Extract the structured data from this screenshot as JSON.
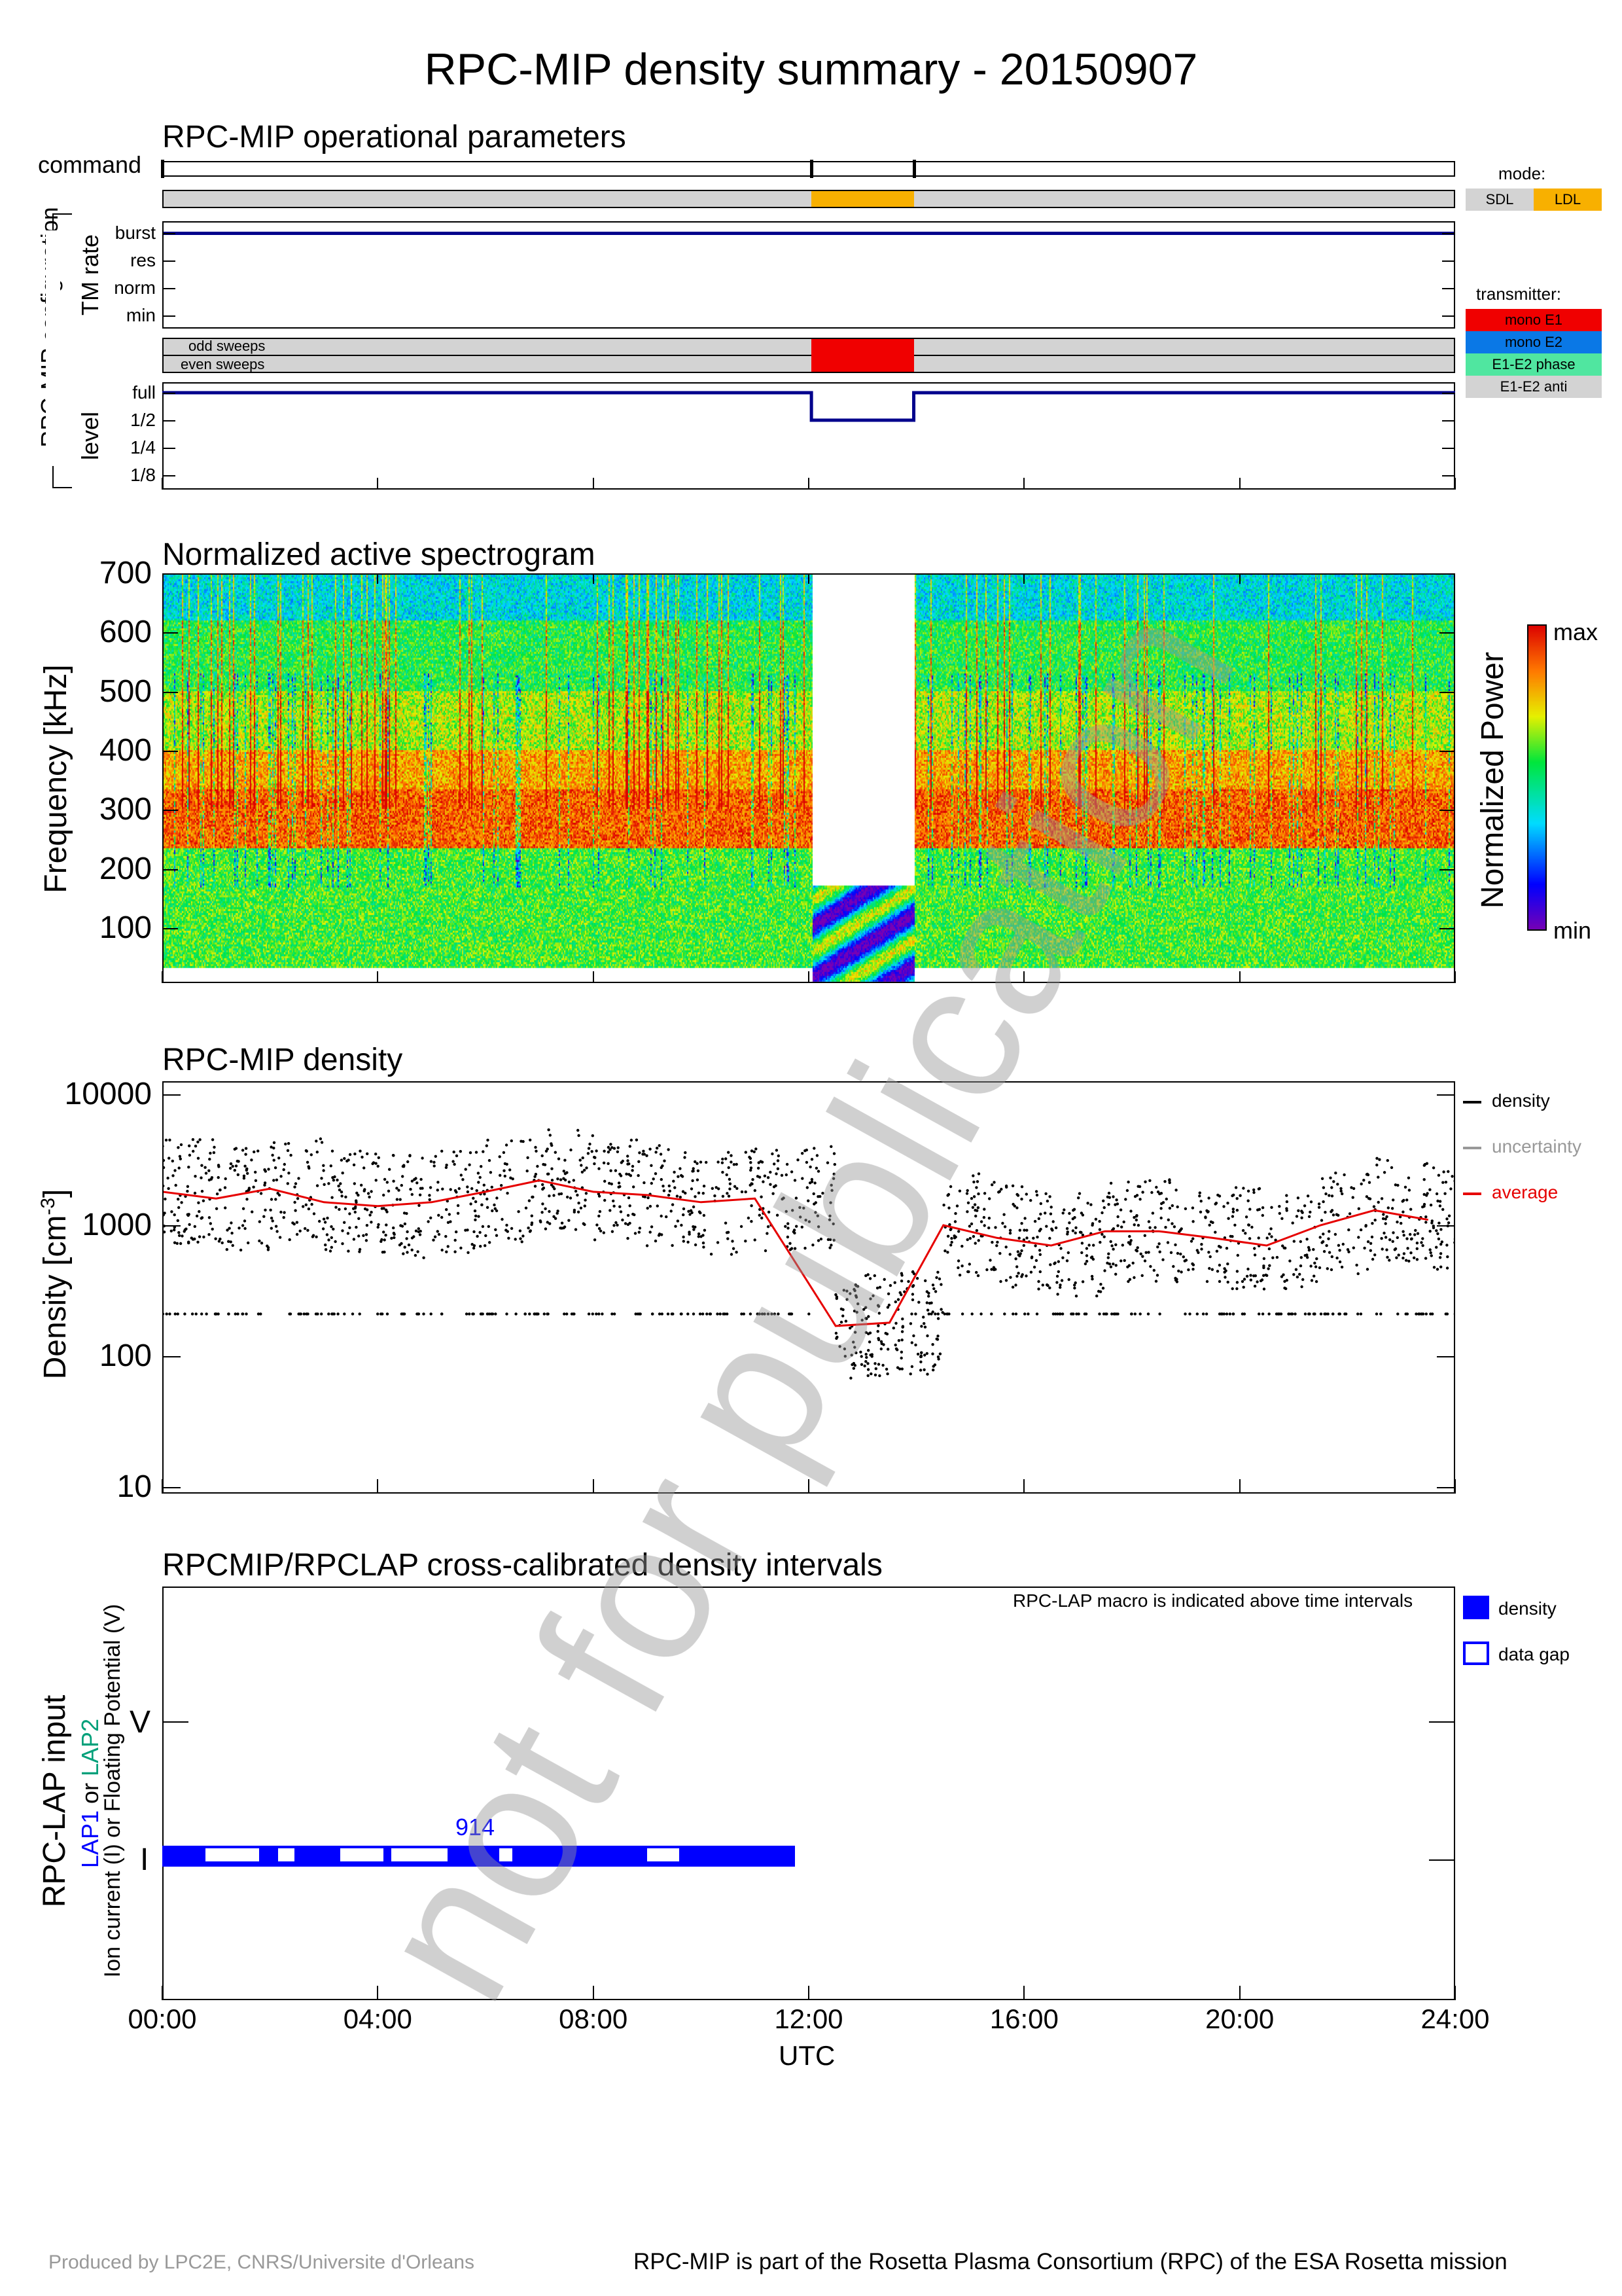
{
  "page_title": "RPC-MIP density summary - 20150907",
  "watermark": "not for publication",
  "footer_left": "Produced by LPC2E, CNRS/Universite d'Orleans",
  "footer_right": "RPC-MIP is part of the Rosetta Plasma Consortium (RPC) of the ESA Rosetta mission",
  "ops": {
    "title": "RPC-MIP operational parameters",
    "command_label": "command",
    "config_label": "RPC-MIP configuration",
    "tm_rate_label": "TM rate",
    "tm_rate_ticks": [
      "burst",
      "res",
      "norm",
      "min"
    ],
    "level_label": "level",
    "level_ticks": [
      "full",
      "1/2",
      "1/4",
      "1/8"
    ],
    "odd_sweeps": "odd sweeps",
    "even_sweeps": "even sweeps",
    "mode_title": "mode:",
    "mode_items": [
      {
        "label": "SDL",
        "color": "#d3d3d3"
      },
      {
        "label": "LDL",
        "color": "#f8b000"
      }
    ],
    "transmitter_title": "transmitter:",
    "transmitter_items": [
      {
        "label": "mono E1",
        "color": "#f00000"
      },
      {
        "label": "mono E2",
        "color": "#0a78e6"
      },
      {
        "label": "E1-E2 phase",
        "color": "#50e6a0"
      },
      {
        "label": "E1-E2 anti",
        "color": "#d3d3d3"
      }
    ],
    "command_times_h": [
      0,
      12.05,
      13.95
    ],
    "ldl_interval_h": [
      12.05,
      13.95
    ],
    "mono_e1_interval_h": [
      12.05,
      13.95
    ],
    "tm_rate_level": "burst",
    "level_segments": [
      {
        "start": 0,
        "end": 12.05,
        "level": "full"
      },
      {
        "start": 12.05,
        "end": 13.95,
        "level": "1/2"
      },
      {
        "start": 13.95,
        "end": 24,
        "level": "full"
      }
    ]
  },
  "spectrogram": {
    "title": "Normalized active spectrogram",
    "ylabel": "Frequency [kHz]",
    "yticks": [
      "700",
      "600",
      "500",
      "400",
      "300",
      "200",
      "100"
    ],
    "ylim": [
      7,
      700
    ],
    "colorbar_label": "Normalized Power",
    "colorbar_max": "max",
    "colorbar_min": "min",
    "gap_interval_h": [
      12.05,
      13.95
    ],
    "gap_fmax_khz": 175
  },
  "density": {
    "title": "RPC-MIP density",
    "ylabel": "Density [cm",
    "ylabel_sup": "-3",
    "ylabel_end": "]",
    "yticks": [
      "10000",
      "1000",
      "100",
      "10"
    ],
    "legend": [
      {
        "label": "density",
        "color": "#000000"
      },
      {
        "label": "uncertainty",
        "color": "#999999"
      },
      {
        "label": "average",
        "color": "#e60000"
      }
    ]
  },
  "lap": {
    "title": "RPCMIP/RPCLAP cross-calibrated density intervals",
    "note": "RPC-LAP macro is indicated above time intervals",
    "macro_label": "914",
    "ylabel_main": "RPC-LAP input",
    "ylabel_lap1": "LAP1",
    "ylabel_or": " or ",
    "ylabel_lap2": "LAP2",
    "ylabel_sub": "Ion current (I) or Floating Potential (V)",
    "tick_v": "V",
    "tick_i": "I",
    "legend_density": "density",
    "legend_gap": "data gap",
    "density_color": "#0000ff",
    "density_interval_h": [
      0,
      11.75
    ],
    "gaps_h": [
      [
        0.8,
        1.8
      ],
      [
        2.15,
        2.45
      ],
      [
        3.3,
        4.1
      ],
      [
        4.25,
        5.3
      ],
      [
        6.25,
        6.5
      ],
      [
        9.0,
        9.6
      ]
    ]
  },
  "xaxis": {
    "ticks": [
      "00:00",
      "04:00",
      "08:00",
      "12:00",
      "16:00",
      "20:00",
      "24:00"
    ],
    "label": "UTC"
  },
  "chart_data": [
    {
      "type": "line",
      "title": "RPC-MIP operational parameters",
      "x": [
        0,
        12.05,
        12.05,
        13.95,
        13.95,
        24
      ],
      "series": [
        {
          "name": "level",
          "values": [
            "full",
            "full",
            "1/2",
            "1/2",
            "full",
            "full"
          ]
        }
      ],
      "xlim": [
        0,
        24
      ]
    },
    {
      "type": "heatmap",
      "title": "Normalized active spectrogram",
      "xlabel": "UTC",
      "ylabel": "Frequency [kHz]",
      "xlim": [
        0,
        24
      ],
      "ylim": [
        7,
        700
      ]
    },
    {
      "type": "scatter",
      "title": "RPC-MIP density",
      "xlabel": "UTC",
      "ylabel": "Density [cm-3]",
      "xlim": [
        0,
        24
      ],
      "ylim": [
        10,
        10000
      ],
      "yscale": "log",
      "series": [
        {
          "name": "average",
          "x": [
            0,
            1,
            2,
            3,
            4,
            5,
            6,
            7,
            8,
            9,
            10,
            11,
            12.5,
            13.5,
            14.5,
            15.5,
            16.5,
            17.5,
            18.5,
            19.5,
            20.5,
            21.5,
            22.5,
            23.5
          ],
          "values": [
            1800,
            1600,
            1900,
            1500,
            1400,
            1500,
            1800,
            2200,
            1800,
            1700,
            1500,
            1600,
            170,
            180,
            1000,
            800,
            700,
            900,
            900,
            800,
            700,
            1000,
            1300,
            1100
          ]
        }
      ]
    },
    {
      "type": "bar",
      "title": "RPCMIP/RPCLAP cross-calibrated density intervals",
      "xlabel": "UTC",
      "xlim": [
        0,
        24
      ],
      "categories": [
        "density"
      ],
      "series": [
        {
          "name": "density",
          "values": [
            [
              0,
              11.75
            ]
          ]
        }
      ]
    }
  ]
}
